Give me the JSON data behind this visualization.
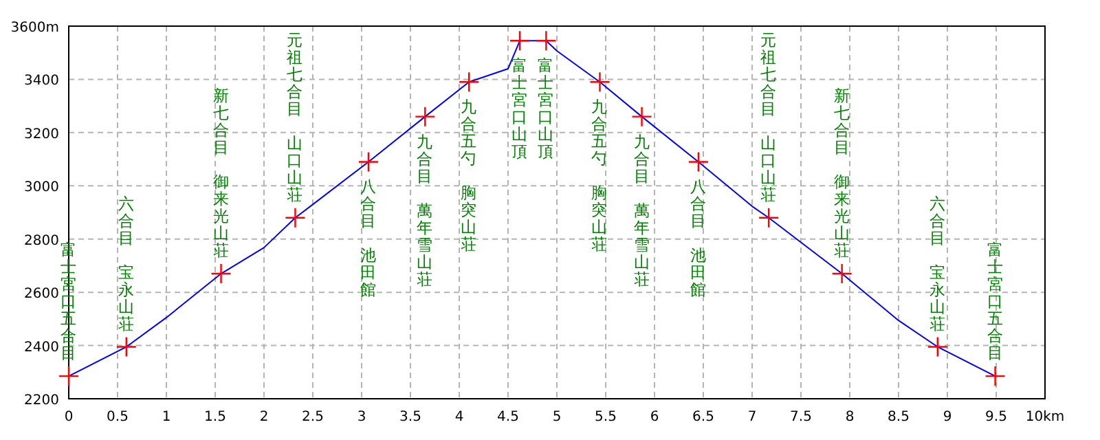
{
  "chart_data": {
    "type": "line",
    "xlim": [
      0,
      10
    ],
    "ylim": [
      2200,
      3600
    ],
    "xticks": [
      0,
      0.5,
      1,
      1.5,
      2,
      2.5,
      3,
      3.5,
      4,
      4.5,
      5,
      5.5,
      6,
      6.5,
      7,
      7.5,
      8,
      8.5,
      9,
      9.5,
      {
        "value": 10,
        "label": "10km"
      }
    ],
    "yticks": [
      2200,
      2400,
      2600,
      2800,
      3000,
      3200,
      3400,
      {
        "value": 3600,
        "label": "3600m"
      }
    ],
    "grid": true,
    "legend": false,
    "series": [
      {
        "type": "line",
        "color": "#0000ff",
        "marker": "none",
        "line_style": "solid",
        "x": [
          0,
          0.59,
          1,
          1.56,
          2,
          2.32,
          2.5,
          3.07,
          3.65,
          4.1,
          4.5,
          4.62,
          4.89,
          5,
          5.44,
          5.87,
          6.45,
          7,
          7.17,
          7.92,
          8.5,
          8.9,
          9.49
        ],
        "values": [
          2285,
          2395,
          2505,
          2670,
          2768,
          2880,
          2930,
          3090,
          3260,
          3390,
          3440,
          3545,
          3545,
          3507,
          3390,
          3260,
          3090,
          2923,
          2880,
          2670,
          2494,
          2395,
          2285
        ]
      },
      {
        "type": "scatter",
        "color": "#ff0000",
        "marker": "cross",
        "x": [
          0,
          0.59,
          1.56,
          2.32,
          3.07,
          3.65,
          4.1,
          4.62,
          4.89,
          5.44,
          5.87,
          6.45,
          7.17,
          7.92,
          8.9,
          9.49
        ],
        "values": [
          2285,
          2395,
          2670,
          2880,
          3090,
          3260,
          3390,
          3545,
          3545,
          3390,
          3260,
          3090,
          2880,
          2670,
          2395,
          2285
        ]
      }
    ],
    "annotations": [
      {
        "text": "富士宮口五合目",
        "x": 0,
        "y": 2285
      },
      "六合目",
      {
        "text": "宝永山荘",
        "x": 0.59,
        "y": 2395
      },
      "新七合目",
      {
        "text": "御来光山荘",
        "x": 1.56,
        "y": 2670
      },
      "元祖七合目",
      {
        "text": "山口山荘",
        "x": 2.32,
        "y": 2880
      },
      {
        "text": "八合目",
        "x": 3.07,
        "y": 3090
      },
      "池田館",
      {
        "text": "九合目",
        "x": 3.65,
        "y": 3260
      },
      "萬年雪山荘",
      {
        "text": "九合五勺",
        "x": 4.1,
        "y": 3390
      },
      "胸突山荘",
      {
        "text": "富士宮口山頂",
        "x": 4.62,
        "y": 3545
      },
      {
        "text": "富士宮口山頂",
        "x": 4.89,
        "y": 3545
      },
      {
        "text": "九合五勺",
        "x": 5.44,
        "y": 3390
      },
      "胸突山荘",
      {
        "text": "九合目",
        "x": 5.87,
        "y": 3260
      },
      "萬年雪山荘",
      {
        "text": "八合目",
        "x": 6.45,
        "y": 3090
      },
      "池田館",
      "元祖七合目",
      {
        "text": "山口山荘",
        "x": 7.17,
        "y": 2880
      },
      "新七合目",
      {
        "text": "御来光山荘",
        "x": 7.92,
        "y": 2670
      },
      "六合目",
      {
        "text": "宝永山荘",
        "x": 8.9,
        "y": 2395
      },
      {
        "text": "富士宮口五合目",
        "x": 9.49,
        "y": 2285
      }
    ]
  }
}
